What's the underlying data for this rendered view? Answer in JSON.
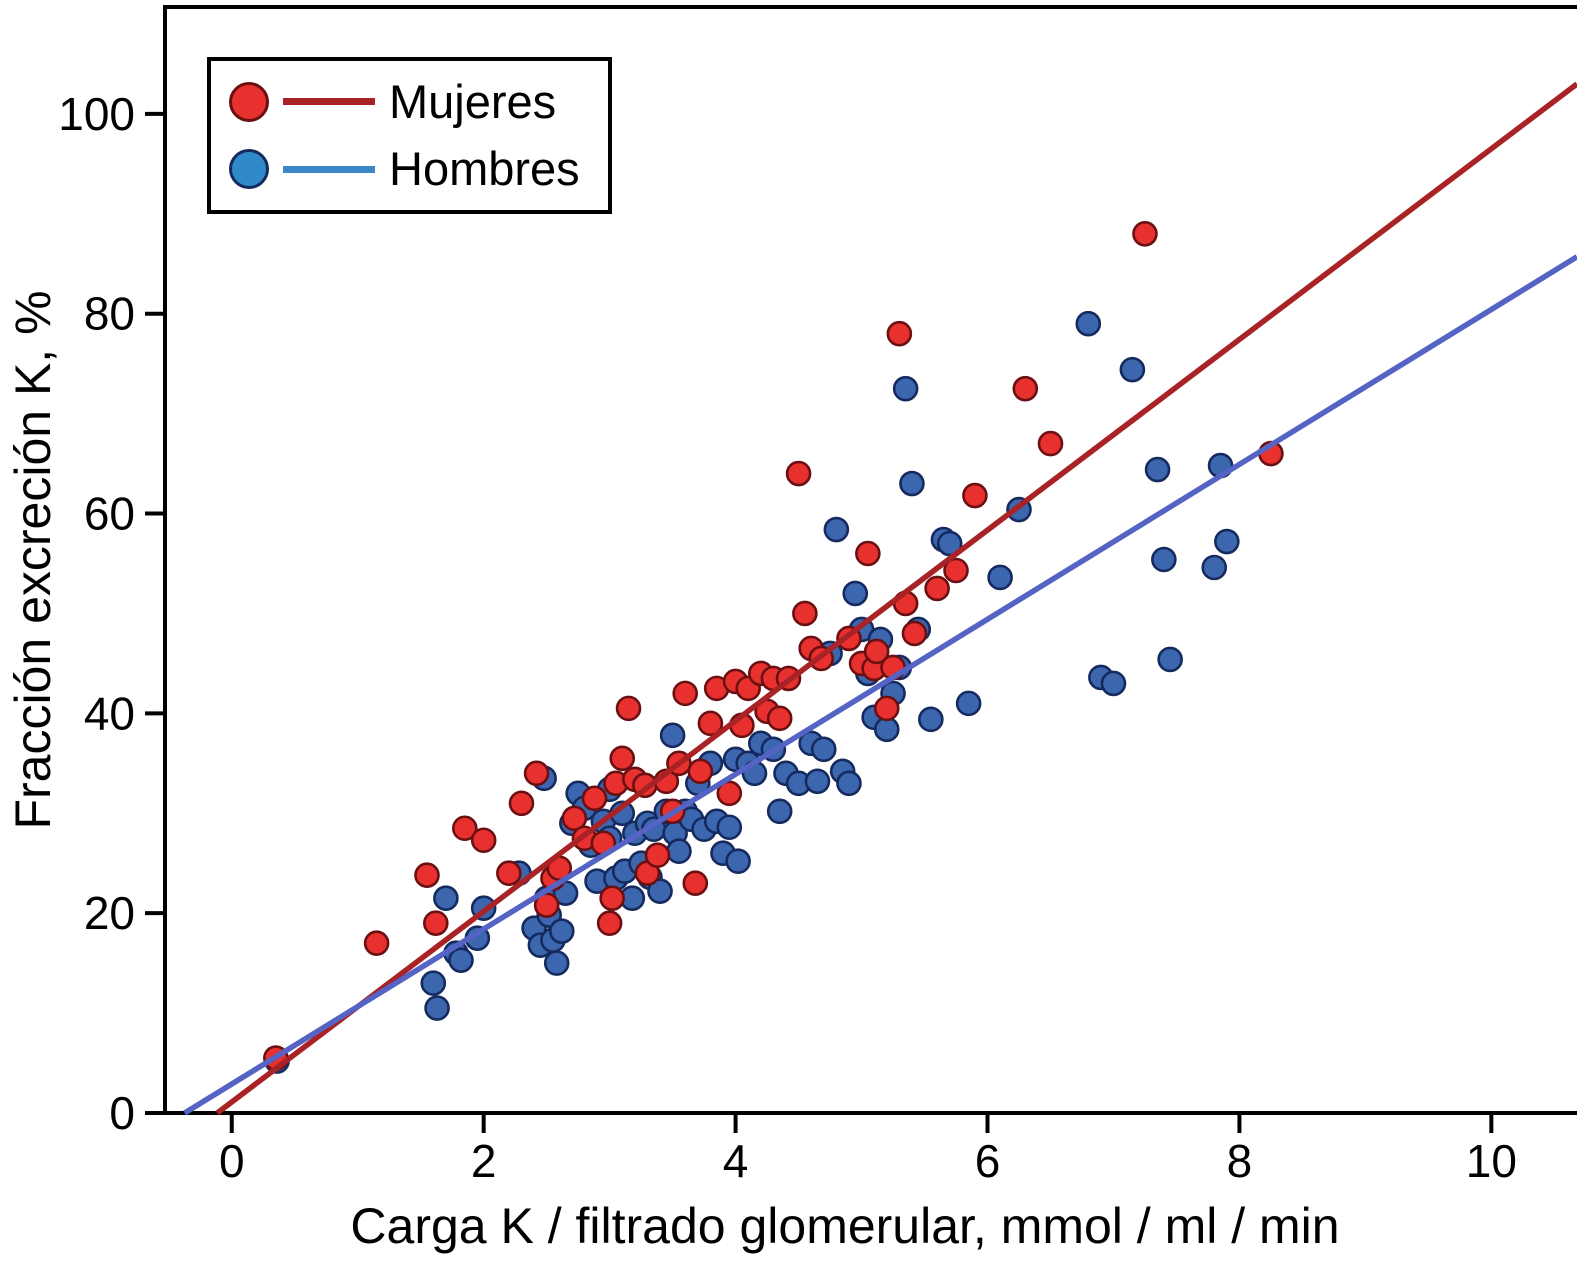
{
  "chart_data": {
    "type": "scatter",
    "title": "",
    "xlabel": "Carga K / filtrado glomerular, mmol / ml / min",
    "ylabel": "Fracción excreción K, %",
    "xlim": [
      -0.53,
      10.68
    ],
    "ylim": [
      0,
      110.7
    ],
    "xticks": [
      0,
      2,
      4,
      6,
      8,
      10
    ],
    "yticks": [
      0,
      20,
      40,
      60,
      80,
      100
    ],
    "grid": false,
    "legend_position": "top-left",
    "style": {
      "background": "#ffffff",
      "axis_color": "#000000",
      "text_color": "#000000"
    },
    "series": [
      {
        "name": "Mujeres",
        "marker_fill": "#e8302e",
        "marker_edge": "#6b1012",
        "line_color": "#a92225",
        "legend_marker_fill": "#e8302e",
        "legend_line_color": "#a92225",
        "trend": {
          "x": [
            -0.115,
            10.68
          ],
          "y": [
            0,
            103
          ]
        },
        "points": [
          [
            0.35,
            5.5
          ],
          [
            1.15,
            17
          ],
          [
            1.55,
            23.8
          ],
          [
            1.62,
            19
          ],
          [
            1.85,
            28.5
          ],
          [
            2.0,
            27.3
          ],
          [
            2.2,
            24
          ],
          [
            2.3,
            31
          ],
          [
            2.42,
            34
          ],
          [
            2.5,
            20.8
          ],
          [
            2.55,
            23.5
          ],
          [
            2.6,
            24.5
          ],
          [
            2.72,
            29.5
          ],
          [
            2.8,
            27.5
          ],
          [
            2.88,
            31.5
          ],
          [
            2.95,
            27
          ],
          [
            3.0,
            19
          ],
          [
            3.02,
            21.5
          ],
          [
            3.05,
            33
          ],
          [
            3.1,
            35.5
          ],
          [
            3.15,
            40.5
          ],
          [
            3.2,
            33.4
          ],
          [
            3.28,
            32.8
          ],
          [
            3.3,
            24
          ],
          [
            3.38,
            25.8
          ],
          [
            3.45,
            33.2
          ],
          [
            3.5,
            30.2
          ],
          [
            3.55,
            35
          ],
          [
            3.6,
            42
          ],
          [
            3.68,
            23
          ],
          [
            3.72,
            34.2
          ],
          [
            3.8,
            39
          ],
          [
            3.85,
            42.5
          ],
          [
            3.95,
            32
          ],
          [
            4.0,
            43.2
          ],
          [
            4.05,
            38.8
          ],
          [
            4.1,
            42.5
          ],
          [
            4.2,
            44
          ],
          [
            4.25,
            40.2
          ],
          [
            4.3,
            43.5
          ],
          [
            4.35,
            39.5
          ],
          [
            4.42,
            43.5
          ],
          [
            4.5,
            64
          ],
          [
            4.55,
            50
          ],
          [
            4.6,
            46.5
          ],
          [
            4.68,
            45.5
          ],
          [
            4.9,
            47.5
          ],
          [
            5.0,
            45
          ],
          [
            5.05,
            56
          ],
          [
            5.1,
            44.5
          ],
          [
            5.12,
            46.2
          ],
          [
            5.2,
            40.5
          ],
          [
            5.25,
            44.6
          ],
          [
            5.3,
            78
          ],
          [
            5.35,
            51
          ],
          [
            5.42,
            48
          ],
          [
            5.6,
            52.5
          ],
          [
            5.75,
            54.3
          ],
          [
            5.9,
            61.8
          ],
          [
            6.3,
            72.5
          ],
          [
            6.5,
            67
          ],
          [
            7.25,
            88
          ],
          [
            8.25,
            66
          ]
        ]
      },
      {
        "name": "Hombres",
        "marker_fill": "#3c66ae",
        "marker_edge": "#152a5e",
        "line_color": "#5463c4",
        "legend_marker_fill": "#3089c8",
        "legend_line_color": "#3a86c6",
        "trend": {
          "x": [
            -0.374,
            10.68
          ],
          "y": [
            0,
            85.7
          ]
        },
        "points": [
          [
            0.36,
            5.2
          ],
          [
            1.6,
            13
          ],
          [
            1.63,
            10.5
          ],
          [
            1.7,
            21.5
          ],
          [
            1.78,
            16
          ],
          [
            1.82,
            15.3
          ],
          [
            1.95,
            17.5
          ],
          [
            2.0,
            20.5
          ],
          [
            2.28,
            24
          ],
          [
            2.4,
            18.5
          ],
          [
            2.45,
            16.8
          ],
          [
            2.48,
            33.5
          ],
          [
            2.5,
            21.5
          ],
          [
            2.52,
            19.8
          ],
          [
            2.55,
            17.3
          ],
          [
            2.58,
            15
          ],
          [
            2.62,
            18.2
          ],
          [
            2.65,
            22
          ],
          [
            2.7,
            29
          ],
          [
            2.75,
            32
          ],
          [
            2.8,
            30.5
          ],
          [
            2.85,
            26.8
          ],
          [
            2.9,
            23.2
          ],
          [
            2.95,
            29.2
          ],
          [
            3.0,
            32.4
          ],
          [
            3.0,
            27.5
          ],
          [
            3.05,
            23.5
          ],
          [
            3.1,
            30
          ],
          [
            3.12,
            24.2
          ],
          [
            3.18,
            21.5
          ],
          [
            3.2,
            28
          ],
          [
            3.25,
            25
          ],
          [
            3.3,
            29
          ],
          [
            3.32,
            23.6
          ],
          [
            3.35,
            28.4
          ],
          [
            3.4,
            22.2
          ],
          [
            3.45,
            30.2
          ],
          [
            3.5,
            37.8
          ],
          [
            3.52,
            28
          ],
          [
            3.55,
            26.2
          ],
          [
            3.6,
            30.2
          ],
          [
            3.65,
            29.4
          ],
          [
            3.7,
            33
          ],
          [
            3.75,
            28.4
          ],
          [
            3.8,
            35
          ],
          [
            3.85,
            29.2
          ],
          [
            3.9,
            26
          ],
          [
            3.95,
            28.6
          ],
          [
            4.0,
            35.4
          ],
          [
            4.02,
            25.2
          ],
          [
            4.1,
            35
          ],
          [
            4.15,
            34
          ],
          [
            4.2,
            37
          ],
          [
            4.3,
            36.4
          ],
          [
            4.35,
            30.2
          ],
          [
            4.4,
            34
          ],
          [
            4.5,
            33
          ],
          [
            4.6,
            37
          ],
          [
            4.65,
            33.2
          ],
          [
            4.7,
            36.4
          ],
          [
            4.75,
            46
          ],
          [
            4.8,
            58.4
          ],
          [
            4.85,
            34.2
          ],
          [
            4.9,
            33
          ],
          [
            4.95,
            52
          ],
          [
            5.0,
            48.4
          ],
          [
            5.05,
            44
          ],
          [
            5.1,
            39.6
          ],
          [
            5.15,
            47.4
          ],
          [
            5.2,
            38.4
          ],
          [
            5.25,
            42
          ],
          [
            5.3,
            44.6
          ],
          [
            5.35,
            72.5
          ],
          [
            5.4,
            63
          ],
          [
            5.45,
            48.4
          ],
          [
            5.55,
            39.4
          ],
          [
            5.65,
            57.4
          ],
          [
            5.7,
            57
          ],
          [
            5.85,
            41
          ],
          [
            6.1,
            53.6
          ],
          [
            6.25,
            60.4
          ],
          [
            6.8,
            79
          ],
          [
            6.9,
            43.6
          ],
          [
            7.0,
            43
          ],
          [
            7.15,
            74.4
          ],
          [
            7.35,
            64.4
          ],
          [
            7.4,
            55.4
          ],
          [
            7.45,
            45.4
          ],
          [
            7.8,
            54.6
          ],
          [
            7.85,
            64.8
          ],
          [
            7.9,
            57.2
          ]
        ]
      }
    ]
  }
}
